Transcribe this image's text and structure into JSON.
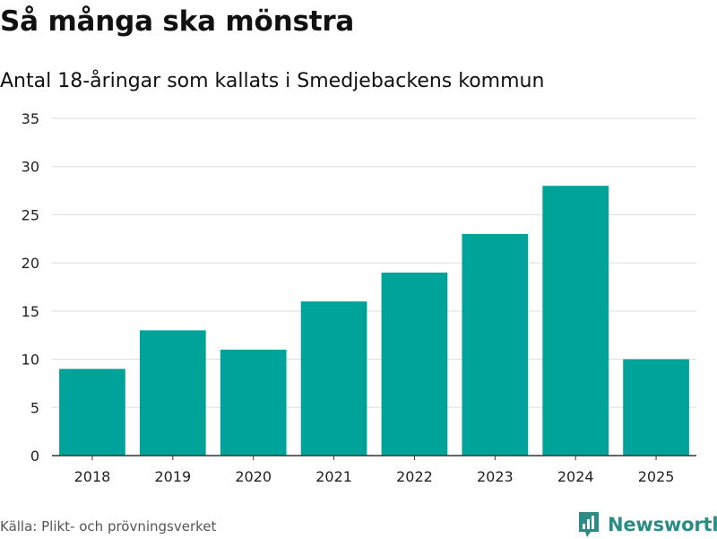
{
  "title": "Så många ska mönstra",
  "subtitle": "Antal 18-åringar som kallats i Smedjebackens kommun",
  "source": "Källa: Plikt- och prövningsverket",
  "brand": {
    "name": "Newsworthy",
    "logo_icon": "bar-chart-logo-icon"
  },
  "colors": {
    "bar": "#00a39a",
    "grid": "#dddddd",
    "axis": "#333333",
    "brand": "#2a8c84"
  },
  "chart_data": {
    "type": "bar",
    "title": "Så många ska mönstra",
    "subtitle": "Antal 18-åringar som kallats i Smedjebackens kommun",
    "xlabel": "",
    "ylabel": "",
    "categories": [
      "2018",
      "2019",
      "2020",
      "2021",
      "2022",
      "2023",
      "2024",
      "2025"
    ],
    "values": [
      9,
      13,
      11,
      16,
      19,
      23,
      28,
      10
    ],
    "ylim": [
      0,
      35
    ],
    "yticks": [
      0,
      5,
      10,
      15,
      20,
      25,
      30,
      35
    ],
    "grid": true,
    "legend": "none"
  }
}
